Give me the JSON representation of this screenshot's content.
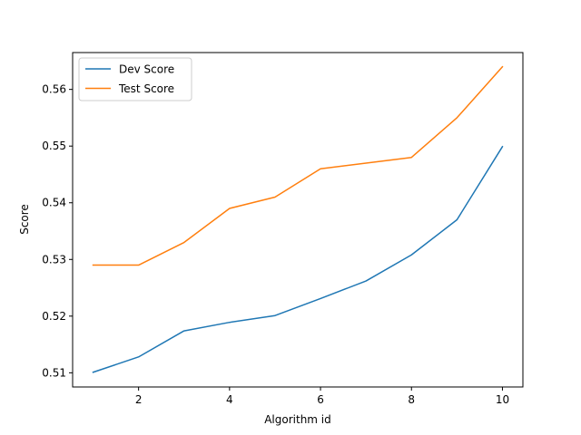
{
  "chart_data": {
    "type": "line",
    "title": "",
    "xlabel": "Algorithm id",
    "ylabel": "Score",
    "xlim": [
      0.55,
      10.45
    ],
    "ylim": [
      0.5075,
      0.5665
    ],
    "xticks": [
      2,
      4,
      6,
      8,
      10
    ],
    "yticks": [
      0.51,
      0.52,
      0.53,
      0.54,
      0.55,
      0.56
    ],
    "ytick_labels": [
      "0.51",
      "0.52",
      "0.53",
      "0.54",
      "0.55",
      "0.56"
    ],
    "grid": false,
    "legend_position": "upper-left",
    "x": [
      1,
      2,
      3,
      4,
      5,
      6,
      7,
      8,
      9,
      10
    ],
    "series": [
      {
        "name": "Dev Score",
        "color": "#1f77b4",
        "values": [
          0.5101,
          0.5128,
          0.5174,
          0.5189,
          0.5201,
          0.5231,
          0.5262,
          0.5308,
          0.537,
          0.5499
        ]
      },
      {
        "name": "Test Score",
        "color": "#ff7f0e",
        "values": [
          0.529,
          0.529,
          0.533,
          0.539,
          0.541,
          0.546,
          0.547,
          0.548,
          0.555,
          0.564
        ]
      }
    ]
  }
}
